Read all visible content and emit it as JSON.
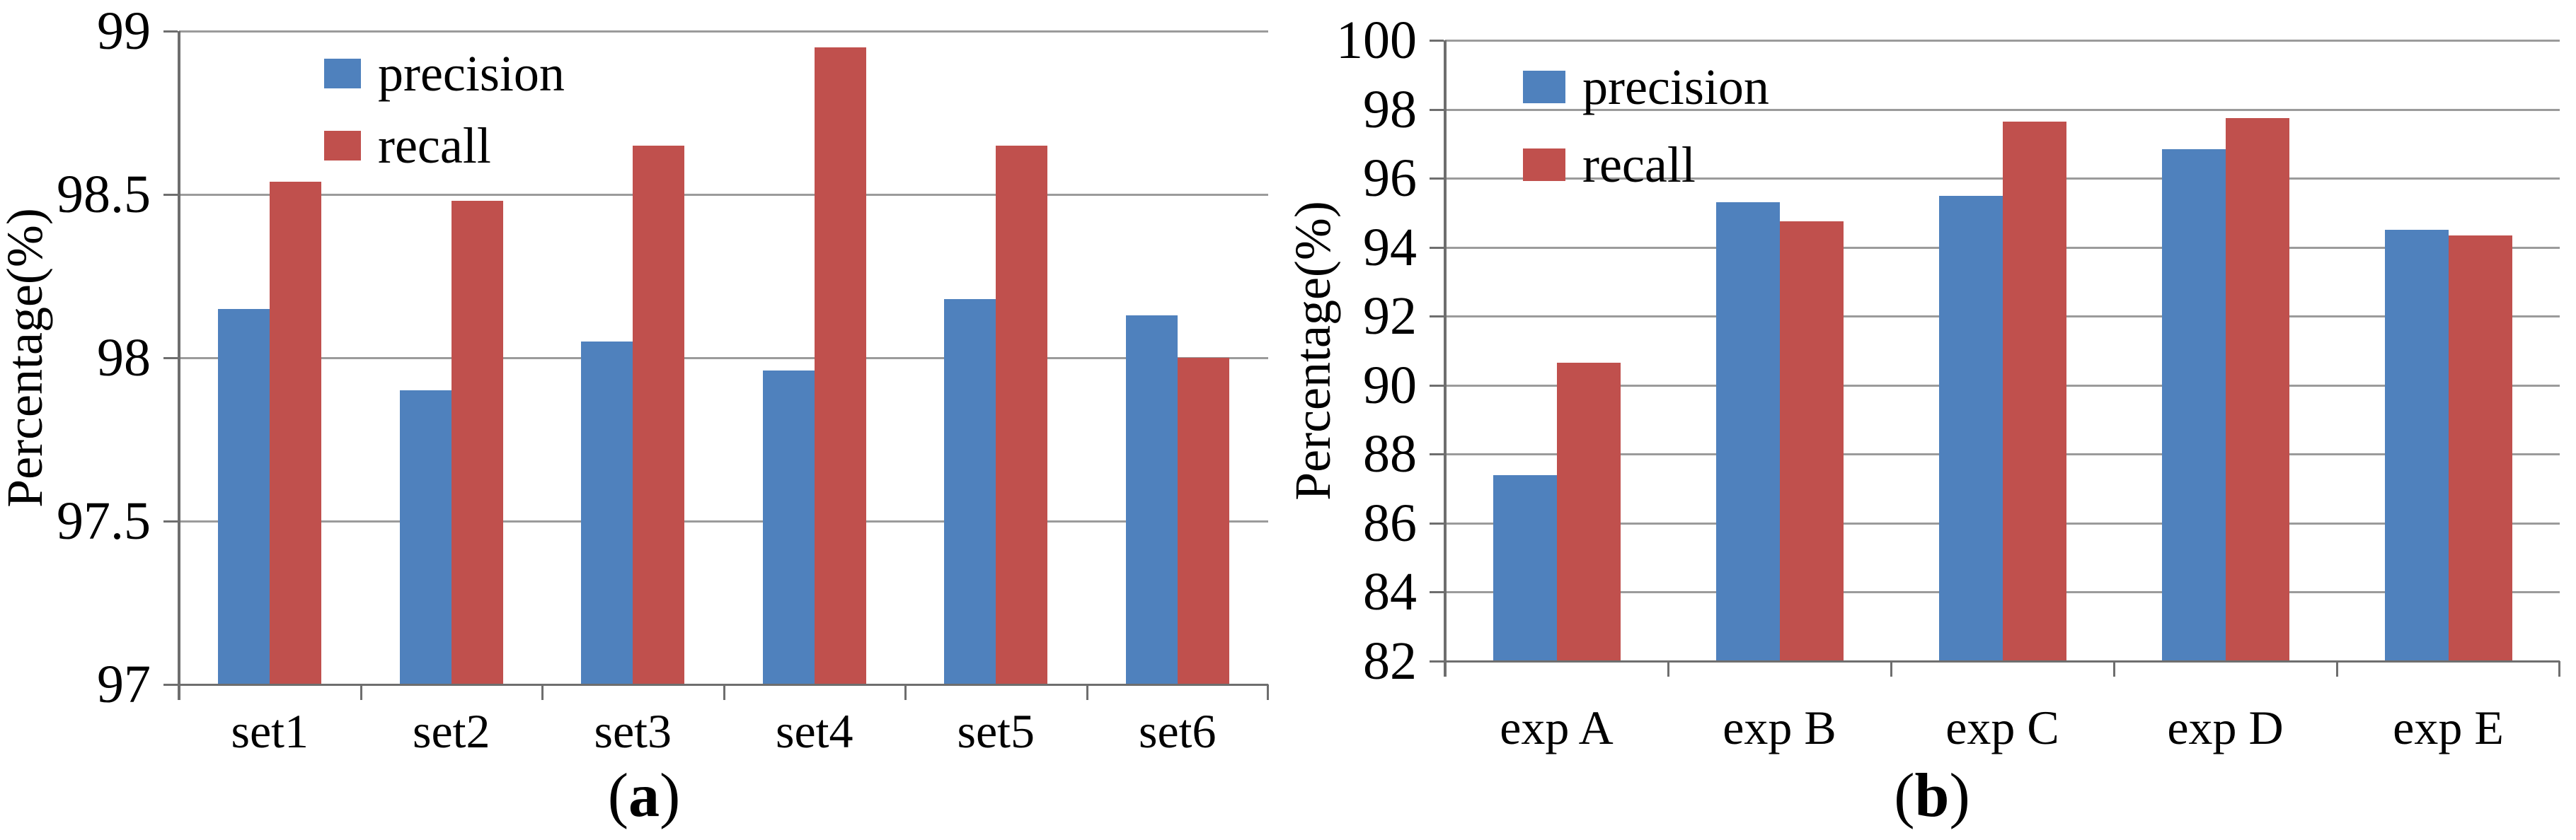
{
  "figure": {
    "background": "#ffffff"
  },
  "colors": {
    "precision": "#4F81BD",
    "recall": "#C0504D",
    "gridline": "#9b9b9b",
    "axis": "#6e6e6e",
    "text": "#000000"
  },
  "chart_data": [
    {
      "id": "a",
      "type": "bar",
      "caption": {
        "pre": "(",
        "letter": "a",
        "post": ")"
      },
      "ylabel": "Percentage(%)",
      "categories": [
        "set1",
        "set2",
        "set3",
        "set4",
        "set5",
        "set6"
      ],
      "series": [
        {
          "name": "precision",
          "color": "#4F81BD",
          "values": [
            98.15,
            97.9,
            98.05,
            97.96,
            98.18,
            98.13
          ]
        },
        {
          "name": "recall",
          "color": "#C0504D",
          "values": [
            98.54,
            98.48,
            98.65,
            98.95,
            98.65,
            98.0
          ]
        }
      ],
      "ylim": [
        97,
        99
      ],
      "yticks": [
        "99",
        "98.5",
        "98",
        "97.5",
        "97"
      ],
      "grid": true,
      "legend_position": "top-left"
    },
    {
      "id": "b",
      "type": "bar",
      "caption": {
        "pre": "(",
        "letter": "b",
        "post": ")"
      },
      "ylabel": "Percentage(%)",
      "categories": [
        "exp A",
        "exp B",
        "exp C",
        "exp D",
        "exp E"
      ],
      "series": [
        {
          "name": "precision",
          "color": "#4F81BD",
          "values": [
            87.4,
            95.3,
            95.5,
            96.85,
            94.5
          ]
        },
        {
          "name": "recall",
          "color": "#C0504D",
          "values": [
            90.65,
            94.75,
            97.65,
            97.75,
            94.35
          ]
        }
      ],
      "ylim": [
        82,
        100
      ],
      "yticks": [
        "100",
        "98",
        "96",
        "94",
        "92",
        "90",
        "88",
        "86",
        "84",
        "82"
      ],
      "grid": true,
      "legend_position": "top-left"
    }
  ]
}
